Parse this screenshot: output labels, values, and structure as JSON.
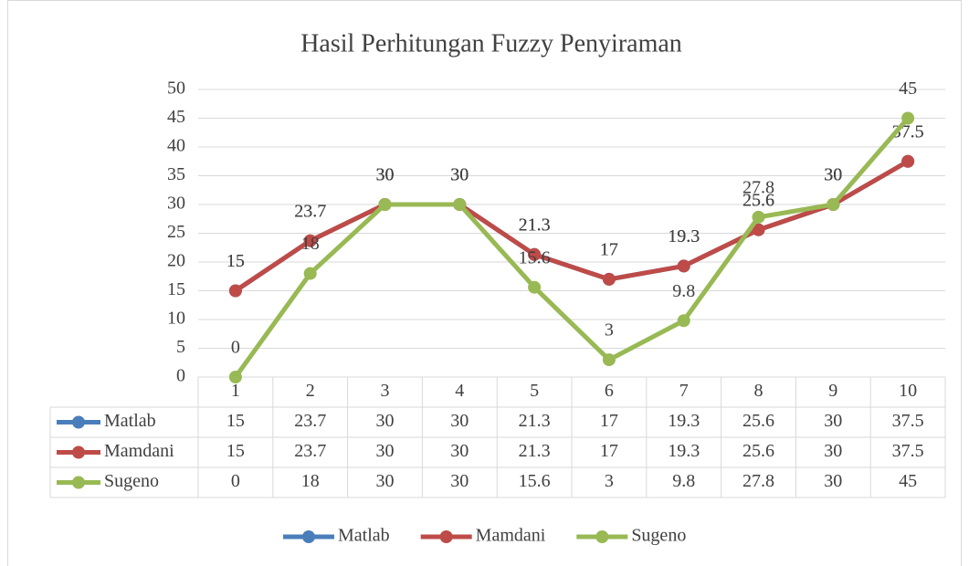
{
  "chart_data": {
    "type": "line",
    "title": "Hasil Perhitungan Fuzzy Penyiraman",
    "categories": [
      1,
      2,
      3,
      4,
      5,
      6,
      7,
      8,
      9,
      10
    ],
    "series": [
      {
        "name": "Matlab",
        "color": "#4a7ebb",
        "values": [
          15,
          23.7,
          30,
          30,
          21.3,
          17,
          19.3,
          25.6,
          30,
          37.5
        ]
      },
      {
        "name": "Mamdani",
        "color": "#be4b48",
        "values": [
          15,
          23.7,
          30,
          30,
          21.3,
          17,
          19.3,
          25.6,
          30,
          37.5
        ]
      },
      {
        "name": "Sugeno",
        "color": "#98b954",
        "values": [
          0,
          18,
          30,
          30,
          15.6,
          3,
          9.8,
          27.8,
          30,
          45
        ]
      }
    ],
    "ylim": [
      0,
      50
    ],
    "yticks": [
      0,
      5,
      10,
      15,
      20,
      25,
      30,
      35,
      40,
      45,
      50
    ],
    "grid": true,
    "legend": "bottom",
    "data_table": true
  }
}
